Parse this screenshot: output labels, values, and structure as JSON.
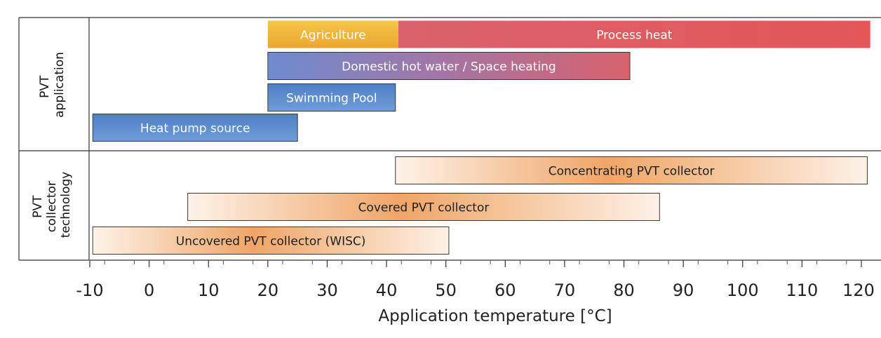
{
  "chart_data": {
    "type": "bar",
    "subtype": "floating-range",
    "xlabel": "Application temperature [°C]",
    "xlim": [
      -10,
      120
    ],
    "xticks": [
      -10,
      0,
      10,
      20,
      30,
      40,
      50,
      60,
      70,
      80,
      90,
      100,
      110,
      120
    ],
    "grid": false,
    "groups": [
      {
        "name": "PVT application",
        "label_lines": [
          "PVT",
          "application"
        ]
      },
      {
        "name": "PVT collector technology",
        "label_lines": [
          "PVT",
          "collector",
          "technology"
        ]
      }
    ],
    "series": [
      {
        "group": 0,
        "row": 0,
        "name": "Agriculture",
        "start": 20,
        "end": 42,
        "style": "agri"
      },
      {
        "group": 0,
        "row": 0,
        "name": "Process heat",
        "start": 42,
        "end": 121.5,
        "style": "process"
      },
      {
        "group": 0,
        "row": 1,
        "name": "Domestic hot water / Space heating",
        "start": 20,
        "end": 81,
        "style": "dhw"
      },
      {
        "group": 0,
        "row": 2,
        "name": "Swimming Pool",
        "start": 20,
        "end": 41.5,
        "style": "blue"
      },
      {
        "group": 0,
        "row": 3,
        "name": "Heat pump source",
        "start": -9.5,
        "end": 25,
        "style": "blue"
      },
      {
        "group": 1,
        "row": 0,
        "name": "Concentrating PVT collector",
        "start": 41.5,
        "end": 121,
        "style": "tech"
      },
      {
        "group": 1,
        "row": 1,
        "name": "Covered PVT collector",
        "start": 6.5,
        "end": 86,
        "style": "tech"
      },
      {
        "group": 1,
        "row": 2,
        "name": "Uncovered PVT collector (WISC)",
        "start": -9.5,
        "end": 50.5,
        "style": "tech"
      }
    ],
    "colors": {
      "agriculture": "#f0b43c",
      "process_heat": "#e05a5e",
      "blue": "#5b8fd0",
      "tech_light": "#fbeee0",
      "tech_dark": "#eda468"
    }
  }
}
